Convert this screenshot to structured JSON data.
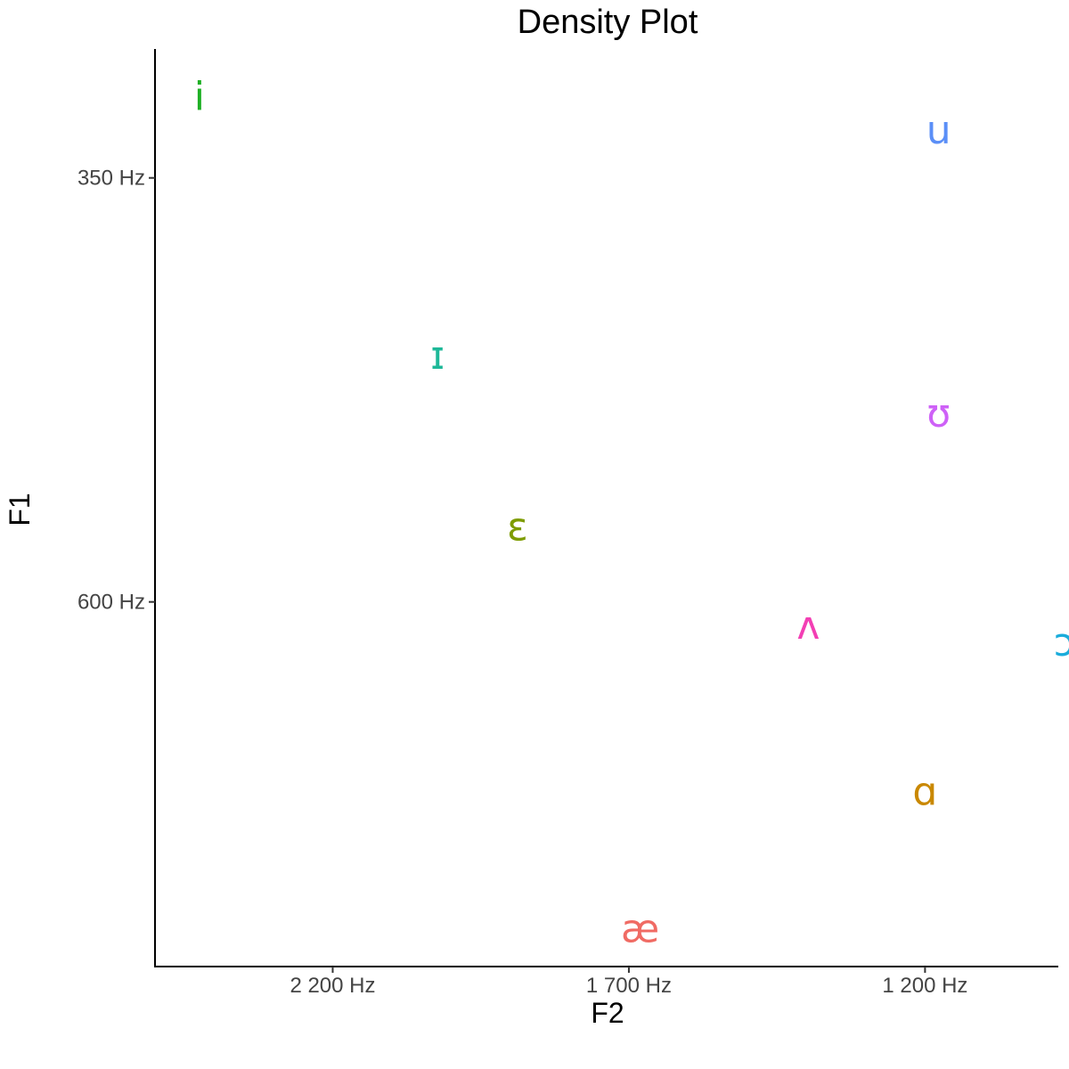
{
  "chart_data": {
    "type": "scatter",
    "title": "Density Plot",
    "xlabel": "F2",
    "ylabel": "F1",
    "x_reversed": true,
    "y_reversed": true,
    "xlim": [
      2500,
      975
    ],
    "ylim": [
      274,
      815
    ],
    "x_ticks": [
      {
        "value": 2200,
        "label": "2 200 Hz"
      },
      {
        "value": 1700,
        "label": "1 700 Hz"
      },
      {
        "value": 1200,
        "label": "1 200 Hz"
      }
    ],
    "y_ticks": [
      {
        "value": 350,
        "label": "350 Hz"
      },
      {
        "value": 600,
        "label": "600 Hz"
      }
    ],
    "points": [
      {
        "label": "i",
        "f2": 2425,
        "f1": 302,
        "color": "#1EB024"
      },
      {
        "label": "u",
        "f2": 1177,
        "f1": 322,
        "color": "#5B8FF7"
      },
      {
        "label": "ɪ",
        "f2": 2023,
        "f1": 455,
        "color": "#1EB898"
      },
      {
        "label": "ʊ",
        "f2": 1177,
        "f1": 489,
        "color": "#CE61F7"
      },
      {
        "label": "ɛ",
        "f2": 1888,
        "f1": 556,
        "color": "#7E9C00"
      },
      {
        "label": "ʌ",
        "f2": 1397,
        "f1": 614,
        "color": "#F33FB4"
      },
      {
        "label": "ɔ",
        "f2": 965,
        "f1": 624,
        "color": "#1AACDB"
      },
      {
        "label": "ɑ",
        "f2": 1200,
        "f1": 712,
        "color": "#C98800"
      },
      {
        "label": "æ",
        "f2": 1681,
        "f1": 793,
        "color": "#F06B64"
      }
    ]
  }
}
